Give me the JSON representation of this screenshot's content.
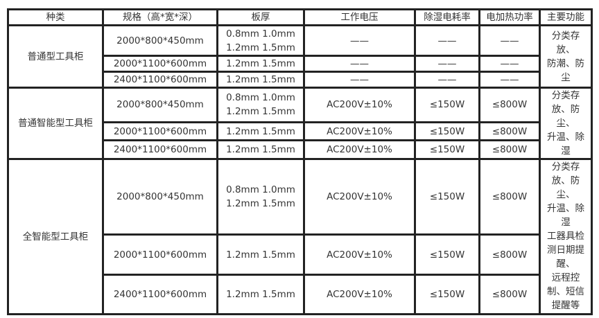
{
  "headers": [
    "种类",
    "规格（高*宽*深）",
    "板厚",
    "工作电压",
    "除湿电耗率",
    "电加热功率",
    "主要功能"
  ],
  "groups": [
    {
      "type": "普通型工具柜",
      "function": "分类存\n放、\n防潮、防\n尘",
      "rows": [
        {
          "spec": "2000*800*450mm",
          "thickness": "0.8mm  1.0mm\n1.2mm  1.5mm",
          "voltage": "——",
          "dehumid": "——",
          "heating": "——"
        },
        {
          "spec": "2000*1100*600mm",
          "thickness": "1.2mm  1.5mm",
          "voltage": "——",
          "dehumid": "——",
          "heating": "——"
        },
        {
          "spec": "2400*1100*600mm",
          "thickness": "1.2mm  1.5mm",
          "voltage": "——",
          "dehumid": "——",
          "heating": "——"
        }
      ]
    },
    {
      "type": "普通智能型工具柜",
      "function": "分类存\n放、防\n尘、\n升温、除\n湿",
      "rows": [
        {
          "spec": "2000*800*450mm",
          "thickness": "0.8mm  1.0mm\n1.2mm  1.5mm",
          "voltage": "AC200V±10%",
          "dehumid": "≤150W",
          "heating": "≤800W"
        },
        {
          "spec": "2000*1100*600mm",
          "thickness": "1.2mm  1.5mm",
          "voltage": "AC200V±10%",
          "dehumid": "≤150W",
          "heating": "≤800W"
        },
        {
          "spec": "2400*1100*600mm",
          "thickness": "1.2mm  1.5mm",
          "voltage": "AC200V±10%",
          "dehumid": "≤150W",
          "heating": "≤800W"
        }
      ]
    },
    {
      "type": "全智能型工具柜",
      "function": "分类存\n放、防\n尘、\n升温、除\n湿\n工器具检\n测日期提\n醒、\n远程控\n制、短信\n提醒等",
      "rows": [
        {
          "spec": "2000*800*450mm",
          "thickness": "0.8mm  1.0mm\n1.2mm  1.5mm",
          "voltage": "AC200V±10%",
          "dehumid": "≤150W",
          "heating": "≤800W"
        },
        {
          "spec": "2000*1100*600mm",
          "thickness": "1.2mm  1.5mm",
          "voltage": "AC200V±10%",
          "dehumid": "≤150W",
          "heating": "≤800W"
        },
        {
          "spec": "2400*1100*600mm",
          "thickness": "1.2mm  1.5mm",
          "voltage": "AC200V±10%",
          "dehumid": "≤150W",
          "heating": "≤800W"
        }
      ]
    }
  ]
}
